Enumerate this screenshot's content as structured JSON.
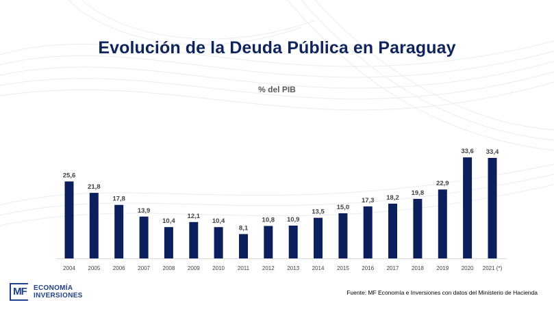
{
  "chart_data": {
    "type": "bar",
    "title": "Evolución de la Deuda Pública en Paraguay",
    "subtitle": "% del PIB",
    "ylabel": "% del PIB",
    "xlabel": "",
    "categories": [
      "2004",
      "2005",
      "2006",
      "2007",
      "2008",
      "2009",
      "2010",
      "2011",
      "2012",
      "2013",
      "2014",
      "2015",
      "2016",
      "2017",
      "2018",
      "2019",
      "2020",
      "2021 (*)"
    ],
    "values": [
      25.6,
      21.8,
      17.8,
      13.9,
      10.4,
      12.1,
      10.4,
      8.1,
      10.8,
      10.9,
      13.5,
      15.0,
      17.3,
      18.2,
      19.8,
      22.9,
      33.6,
      33.4
    ],
    "value_labels": [
      "25,6",
      "21,8",
      "17,8",
      "13,9",
      "10,4",
      "12,1",
      "10,4",
      "8,1",
      "10,8",
      "10,9",
      "13,5",
      "15,0",
      "17,3",
      "18,2",
      "19,8",
      "22,9",
      "33,6",
      "33,4"
    ],
    "ylim": [
      0,
      40
    ],
    "grid": false,
    "legend": "none",
    "bar_color": "#0b1f5c"
  },
  "logo": {
    "mark": "MF",
    "line1": "ECONOMÍA",
    "line2": "INVERSIONES"
  },
  "source": "Fuente: MF Economía e Inversiones con datos del Ministerio de Hacienda",
  "colors": {
    "title": "#10245c",
    "bars": "#0b1f5c",
    "logo": "#1f3f8a"
  }
}
